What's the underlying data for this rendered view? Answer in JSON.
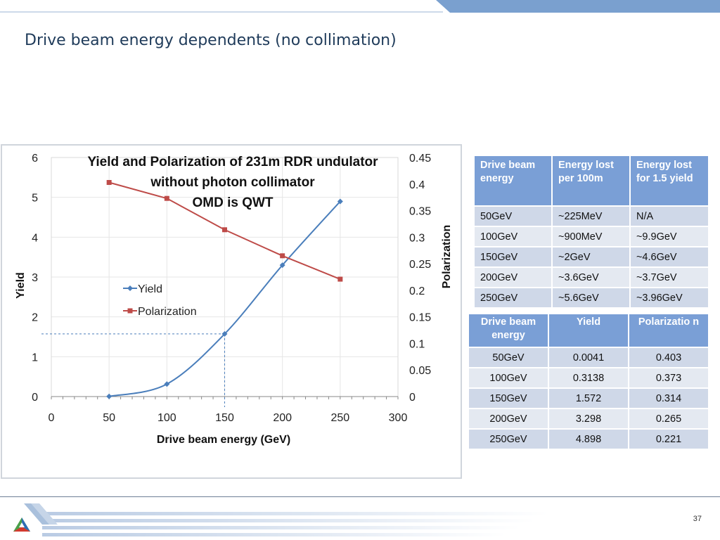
{
  "slide": {
    "title": "Drive beam energy dependents (no collimation)",
    "page_number": "37",
    "accent_color": "#7aa0cf"
  },
  "chart_data": {
    "type": "line",
    "title_lines": [
      "Yield and Polarization of 231m RDR undulator",
      "without photon collimator",
      "OMD is QWT"
    ],
    "xlabel": "Drive beam energy (GeV)",
    "ylabel": "Yield",
    "y2label": "Polarization",
    "x_ticks": [
      "0",
      "50",
      "100",
      "150",
      "200",
      "250",
      "300"
    ],
    "y_ticks": [
      "0",
      "1",
      "2",
      "3",
      "4",
      "5",
      "6"
    ],
    "y2_ticks": [
      "0",
      "0.05",
      "0.1",
      "0.15",
      "0.2",
      "0.25",
      "0.3",
      "0.35",
      "0.4",
      "0.45"
    ],
    "xlim": [
      0,
      300
    ],
    "ylim": [
      0,
      6
    ],
    "y2lim": [
      0,
      0.45
    ],
    "grid": true,
    "legend_position": "center-left",
    "series": [
      {
        "name": "Yield",
        "axis": "left",
        "color": "#4a7ebb",
        "marker": "diamond",
        "x": [
          50,
          100,
          150,
          200,
          250
        ],
        "values": [
          0.0041,
          0.3138,
          1.572,
          3.298,
          4.898
        ]
      },
      {
        "name": "Polarization",
        "axis": "right",
        "color": "#be4b48",
        "marker": "square",
        "x": [
          50,
          100,
          150,
          200,
          250
        ],
        "values": [
          0.403,
          0.373,
          0.314,
          0.265,
          0.221
        ]
      }
    ],
    "guide": {
      "x": 150,
      "y": 1.572
    }
  },
  "table1": {
    "headers": [
      "Drive beam energy",
      "Energy lost per 100m",
      "Energy lost for 1.5 yield"
    ],
    "rows": [
      [
        "50GeV",
        "~225MeV",
        "N/A"
      ],
      [
        "100GeV",
        "~900MeV",
        "~9.9GeV"
      ],
      [
        "150GeV",
        "~2GeV",
        "~4.6GeV"
      ],
      [
        "200GeV",
        "~3.6GeV",
        "~3.7GeV"
      ],
      [
        "250GeV",
        "~5.6GeV",
        "~3.96GeV"
      ]
    ]
  },
  "table2": {
    "headers": [
      "Drive beam energy",
      "Yield",
      "Polarizatio n"
    ],
    "rows": [
      [
        "50GeV",
        "0.0041",
        "0.403"
      ],
      [
        "100GeV",
        "0.3138",
        "0.373"
      ],
      [
        "150GeV",
        "1.572",
        "0.314"
      ],
      [
        "200GeV",
        "3.298",
        "0.265"
      ],
      [
        "250GeV",
        "4.898",
        "0.221"
      ]
    ]
  }
}
